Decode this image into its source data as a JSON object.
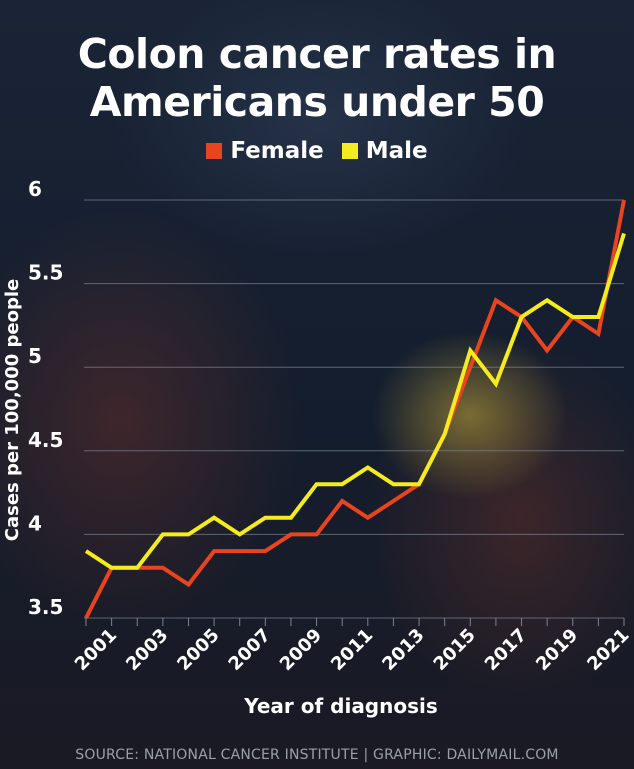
{
  "title": "Colon cancer rates in Americans under 50",
  "source_text": "SOURCE: NATIONAL CANCER INSTITUTE  |  GRAPHIC: DAILYMAIL.COM",
  "chart_data": {
    "type": "line",
    "title": "Colon cancer rates in Americans under 50",
    "xlabel": "Year of diagnosis",
    "ylabel": "Cases per 100,000 people",
    "ylim": [
      3.5,
      6
    ],
    "yticks": [
      3.5,
      4,
      4.5,
      5,
      5.5,
      6
    ],
    "ytick_labels": [
      "3.5",
      "4",
      "4.5",
      "5",
      "5.5",
      "6"
    ],
    "xlim": [
      2000,
      2021
    ],
    "xtick_labels": [
      "2001",
      "2003",
      "2005",
      "2007",
      "2009",
      "2011",
      "2013",
      "2015",
      "2017",
      "2019",
      "2021"
    ],
    "grid": "horizontal",
    "legend": "top-center",
    "x": [
      2000,
      2001,
      2002,
      2003,
      2004,
      2005,
      2006,
      2007,
      2008,
      2009,
      2010,
      2011,
      2012,
      2013,
      2014,
      2015,
      2016,
      2017,
      2018,
      2019,
      2020,
      2021
    ],
    "series": [
      {
        "name": "Female",
        "color": "#e8441e",
        "values": [
          3.5,
          3.8,
          3.8,
          3.8,
          3.7,
          3.9,
          3.9,
          3.9,
          4.0,
          4.0,
          4.2,
          4.1,
          4.2,
          4.3,
          4.6,
          5.0,
          5.4,
          5.3,
          5.1,
          5.3,
          5.2,
          6.0
        ]
      },
      {
        "name": "Male",
        "color": "#f4ec1e",
        "values": [
          3.9,
          3.8,
          3.8,
          4.0,
          4.0,
          4.1,
          4.0,
          4.1,
          4.1,
          4.3,
          4.3,
          4.4,
          4.3,
          4.3,
          4.6,
          5.1,
          4.9,
          5.3,
          5.4,
          5.3,
          5.3,
          5.8
        ]
      }
    ]
  }
}
